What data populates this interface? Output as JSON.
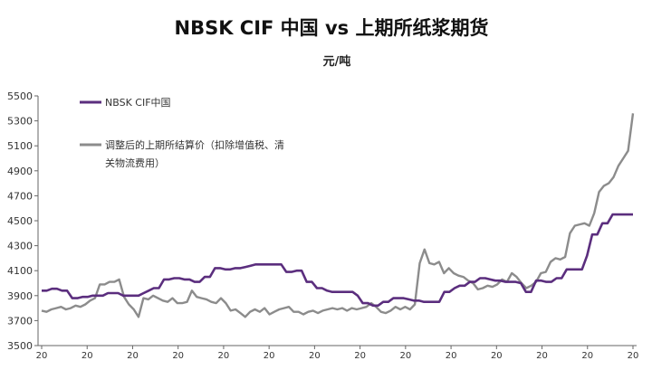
{
  "chart_data": {
    "type": "line",
    "title": "NBSK CIF 中国 vs 上期所纸浆期货",
    "subtitle": "元/吨",
    "ylim": [
      3500,
      5500
    ],
    "yticks": [
      "5500",
      "5300",
      "5100",
      "4900",
      "4700",
      "4500",
      "4300",
      "4100",
      "3900",
      "3700",
      "3500"
    ],
    "xtick_label": "20",
    "x_count": 14,
    "grid": false,
    "legend_position": "top-left",
    "series": [
      {
        "name": "NBSK CIF中国",
        "color": "#5b2e7e",
        "values": [
          3940,
          3940,
          3955,
          3955,
          3940,
          3940,
          3880,
          3880,
          3890,
          3890,
          3900,
          3900,
          3900,
          3920,
          3920,
          3920,
          3900,
          3900,
          3900,
          3900,
          3920,
          3940,
          3960,
          3960,
          4030,
          4030,
          4040,
          4040,
          4030,
          4030,
          4010,
          4010,
          4050,
          4050,
          4120,
          4120,
          4110,
          4110,
          4120,
          4120,
          4130,
          4140,
          4150,
          4150,
          4150,
          4150,
          4150,
          4150,
          4090,
          4090,
          4100,
          4100,
          4010,
          4010,
          3960,
          3960,
          3940,
          3930,
          3930,
          3930,
          3930,
          3930,
          3900,
          3840,
          3840,
          3820,
          3820,
          3850,
          3850,
          3880,
          3880,
          3880,
          3870,
          3860,
          3860,
          3850,
          3850,
          3850,
          3850,
          3930,
          3930,
          3960,
          3980,
          3980,
          4010,
          4010,
          4040,
          4040,
          4030,
          4020,
          4020,
          4010,
          4010,
          4010,
          4000,
          3930,
          3930,
          4020,
          4020,
          4010,
          4010,
          4040,
          4040,
          4110,
          4110,
          4110,
          4110,
          4220,
          4390,
          4390,
          4480,
          4480,
          4550,
          4550,
          4550,
          4550,
          4550
        ]
      },
      {
        "name": "调整后的上期所结算价（扣除增值税、清关物流费用）",
        "color": "#8c8c8c",
        "values": [
          3780,
          3770,
          3790,
          3800,
          3810,
          3790,
          3800,
          3820,
          3810,
          3830,
          3860,
          3880,
          3990,
          3990,
          4010,
          4010,
          4030,
          3890,
          3830,
          3790,
          3730,
          3880,
          3870,
          3900,
          3880,
          3860,
          3850,
          3880,
          3840,
          3840,
          3850,
          3940,
          3890,
          3880,
          3870,
          3850,
          3840,
          3880,
          3840,
          3780,
          3790,
          3760,
          3730,
          3770,
          3790,
          3770,
          3800,
          3750,
          3770,
          3790,
          3800,
          3810,
          3770,
          3770,
          3750,
          3770,
          3780,
          3760,
          3780,
          3790,
          3800,
          3790,
          3800,
          3780,
          3800,
          3790,
          3800,
          3810,
          3840,
          3810,
          3770,
          3760,
          3780,
          3810,
          3790,
          3810,
          3790,
          3830,
          4160,
          4270,
          4160,
          4150,
          4170,
          4080,
          4120,
          4080,
          4060,
          4050,
          4020,
          4000,
          3950,
          3960,
          3980,
          3970,
          3990,
          4030,
          4010,
          4080,
          4050,
          4000,
          3960,
          3980,
          4010,
          4080,
          4090,
          4170,
          4200,
          4190,
          4210,
          4400,
          4460,
          4470,
          4480,
          4460,
          4560,
          4730,
          4780,
          4800,
          4850,
          4940,
          5000,
          5060,
          5360
        ]
      }
    ]
  }
}
